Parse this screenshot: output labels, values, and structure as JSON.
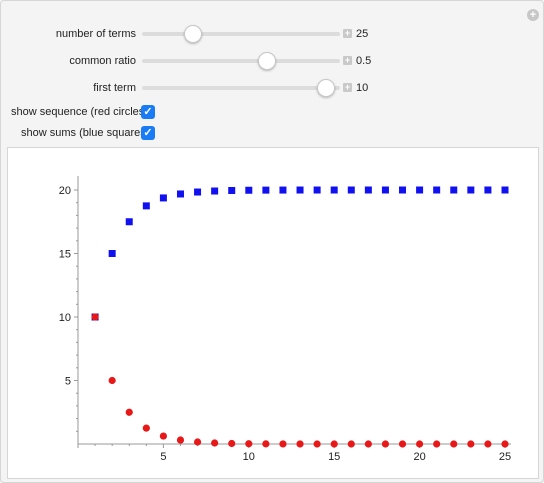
{
  "controls": {
    "sliders": [
      {
        "label": "number of terms",
        "value": "25",
        "fraction": 0.23
      },
      {
        "label": "common ratio",
        "value": "0.5",
        "fraction": 0.64
      },
      {
        "label": "first term",
        "value": "10",
        "fraction": 0.96
      }
    ],
    "checkboxes": [
      {
        "label": "show sequence (red circles)",
        "checked": true
      },
      {
        "label": "show sums (blue squares)",
        "checked": true
      }
    ]
  },
  "chart_data": {
    "type": "scatter",
    "xlim": [
      0,
      25
    ],
    "ylim": [
      0,
      20
    ],
    "x_ticks": [
      "5",
      "10",
      "15",
      "20",
      "25"
    ],
    "y_ticks": [
      "5",
      "10",
      "15",
      "20"
    ],
    "series": [
      {
        "color": "#1010f0",
        "marker": "square",
        "x": [
          1,
          2,
          3,
          4,
          5,
          6,
          7,
          8,
          9,
          10,
          11,
          12,
          13,
          14,
          15,
          16,
          17,
          18,
          19,
          20,
          21,
          22,
          23,
          24,
          25
        ],
        "values": [
          10,
          15,
          17.5,
          18.75,
          19.375,
          19.6875,
          19.84,
          19.92,
          19.96,
          19.98,
          19.99,
          19.995,
          19.998,
          19.999,
          19.9994,
          19.9997,
          19.9998,
          19.9999,
          19.99996,
          19.99998,
          19.99999,
          19.999995,
          19.999998,
          19.999999,
          19.9999994
        ]
      },
      {
        "color": "#e81818",
        "marker": "circle",
        "x": [
          1,
          2,
          3,
          4,
          5,
          6,
          7,
          8,
          9,
          10,
          11,
          12,
          13,
          14,
          15,
          16,
          17,
          18,
          19,
          20,
          21,
          22,
          23,
          24,
          25
        ],
        "values": [
          10,
          5,
          2.5,
          1.25,
          0.625,
          0.3125,
          0.15625,
          0.078,
          0.039,
          0.0195,
          0.0098,
          0.0049,
          0.0024,
          0.0012,
          0.0006,
          0.0003,
          0.00015,
          8e-05,
          4e-05,
          2e-05,
          1e-05,
          5e-06,
          2.4e-06,
          1.2e-06,
          6e-07
        ]
      }
    ]
  }
}
